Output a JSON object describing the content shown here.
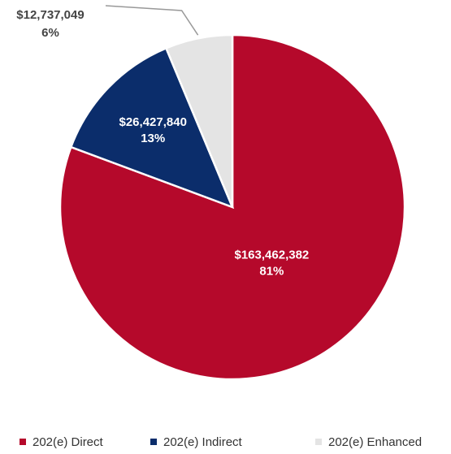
{
  "chart_data": {
    "type": "pie",
    "categories": [
      "202(e) Direct",
      "202(e) Indirect",
      "202(e) Enhanced"
    ],
    "values": [
      163462382,
      26427840,
      12737049
    ],
    "value_labels": [
      "$163,462,382",
      "$26,427,840",
      "$12,737,049"
    ],
    "percent_labels": [
      "81%",
      "13%",
      "6%"
    ],
    "colors": [
      "#b5092b",
      "#0b2d6b",
      "#e4e4e4"
    ],
    "legend": "bottom"
  }
}
